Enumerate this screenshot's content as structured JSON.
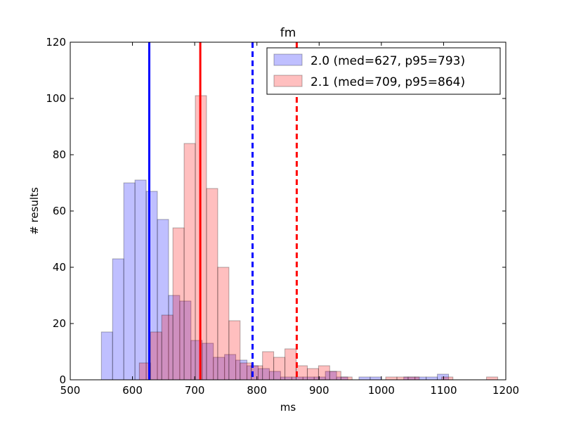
{
  "chart_data": {
    "type": "bar",
    "title": "fm",
    "xlabel": "ms",
    "ylabel": "# results",
    "xlim": [
      500,
      1200
    ],
    "ylim": [
      0,
      120
    ],
    "xticks": [
      500,
      600,
      700,
      800,
      900,
      1000,
      1100,
      1200
    ],
    "yticks": [
      0,
      20,
      40,
      60,
      80,
      100,
      120
    ],
    "grid": false,
    "legend_position": "top-right",
    "series": [
      {
        "name": "2.0 (med=627, p95=793)",
        "color": "#0000ff",
        "alpha": 0.25,
        "bin_width": 18,
        "bins": [
          {
            "x0": 550,
            "count": 17
          },
          {
            "x0": 568,
            "count": 43
          },
          {
            "x0": 586,
            "count": 70
          },
          {
            "x0": 604,
            "count": 71
          },
          {
            "x0": 622,
            "count": 67
          },
          {
            "x0": 640,
            "count": 57
          },
          {
            "x0": 658,
            "count": 30
          },
          {
            "x0": 676,
            "count": 28
          },
          {
            "x0": 694,
            "count": 14
          },
          {
            "x0": 712,
            "count": 13
          },
          {
            "x0": 730,
            "count": 8
          },
          {
            "x0": 748,
            "count": 9
          },
          {
            "x0": 766,
            "count": 7
          },
          {
            "x0": 784,
            "count": 5
          },
          {
            "x0": 802,
            "count": 4
          },
          {
            "x0": 820,
            "count": 3
          },
          {
            "x0": 838,
            "count": 1
          },
          {
            "x0": 856,
            "count": 1
          },
          {
            "x0": 874,
            "count": 1
          },
          {
            "x0": 892,
            "count": 1
          },
          {
            "x0": 910,
            "count": 3
          },
          {
            "x0": 928,
            "count": 1
          },
          {
            "x0": 964,
            "count": 1
          },
          {
            "x0": 982,
            "count": 1
          },
          {
            "x0": 1036,
            "count": 1
          },
          {
            "x0": 1054,
            "count": 1
          },
          {
            "x0": 1072,
            "count": 1
          },
          {
            "x0": 1090,
            "count": 2
          }
        ],
        "median": 627,
        "p95": 793
      },
      {
        "name": "2.1 (med=709, p95=864)",
        "color": "#ff0000",
        "alpha": 0.25,
        "bin_width": 18,
        "bins": [
          {
            "x0": 611,
            "count": 6
          },
          {
            "x0": 629,
            "count": 17
          },
          {
            "x0": 647,
            "count": 23
          },
          {
            "x0": 665,
            "count": 54
          },
          {
            "x0": 683,
            "count": 84
          },
          {
            "x0": 701,
            "count": 101
          },
          {
            "x0": 719,
            "count": 68
          },
          {
            "x0": 737,
            "count": 40
          },
          {
            "x0": 755,
            "count": 21
          },
          {
            "x0": 773,
            "count": 6
          },
          {
            "x0": 791,
            "count": 5
          },
          {
            "x0": 809,
            "count": 10
          },
          {
            "x0": 827,
            "count": 8
          },
          {
            "x0": 845,
            "count": 11
          },
          {
            "x0": 863,
            "count": 5
          },
          {
            "x0": 881,
            "count": 4
          },
          {
            "x0": 899,
            "count": 5
          },
          {
            "x0": 917,
            "count": 3
          },
          {
            "x0": 935,
            "count": 1
          },
          {
            "x0": 1007,
            "count": 1
          },
          {
            "x0": 1025,
            "count": 1
          },
          {
            "x0": 1043,
            "count": 1
          },
          {
            "x0": 1097,
            "count": 1
          },
          {
            "x0": 1169,
            "count": 1
          }
        ],
        "median": 709,
        "p95": 864
      }
    ],
    "vlines": [
      {
        "x": 627,
        "color": "#0000ff",
        "style": "solid"
      },
      {
        "x": 709,
        "color": "#ff0000",
        "style": "solid"
      },
      {
        "x": 793,
        "color": "#0000ff",
        "style": "dashed"
      },
      {
        "x": 864,
        "color": "#ff0000",
        "style": "dashed"
      }
    ]
  }
}
